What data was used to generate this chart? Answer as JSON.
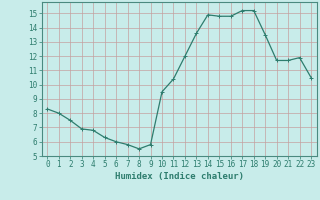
{
  "x": [
    0,
    1,
    2,
    3,
    4,
    5,
    6,
    7,
    8,
    9,
    10,
    11,
    12,
    13,
    14,
    15,
    16,
    17,
    18,
    19,
    20,
    21,
    22,
    23
  ],
  "y": [
    8.3,
    8.0,
    7.5,
    6.9,
    6.8,
    6.3,
    6.0,
    5.8,
    5.5,
    5.8,
    9.5,
    10.4,
    12.0,
    13.6,
    14.9,
    14.8,
    14.8,
    15.2,
    15.2,
    13.5,
    11.7,
    11.7,
    11.9,
    10.5
  ],
  "line_color": "#2e7d6e",
  "marker": "+",
  "markersize": 3,
  "linewidth": 0.9,
  "bg_color": "#c8ecea",
  "plot_bg_color": "#c8ecea",
  "grid_color": "#c4a0a0",
  "xlabel": "Humidex (Indice chaleur)",
  "xlim": [
    -0.5,
    23.5
  ],
  "ylim": [
    5,
    15.8
  ],
  "yticks": [
    5,
    6,
    7,
    8,
    9,
    10,
    11,
    12,
    13,
    14,
    15
  ],
  "xticks": [
    0,
    1,
    2,
    3,
    4,
    5,
    6,
    7,
    8,
    9,
    10,
    11,
    12,
    13,
    14,
    15,
    16,
    17,
    18,
    19,
    20,
    21,
    22,
    23
  ],
  "tick_fontsize": 5.5,
  "xlabel_fontsize": 6.5,
  "tick_color": "#2e7d6e",
  "axis_color": "#2e7d6e",
  "spine_color": "#4a8a80"
}
